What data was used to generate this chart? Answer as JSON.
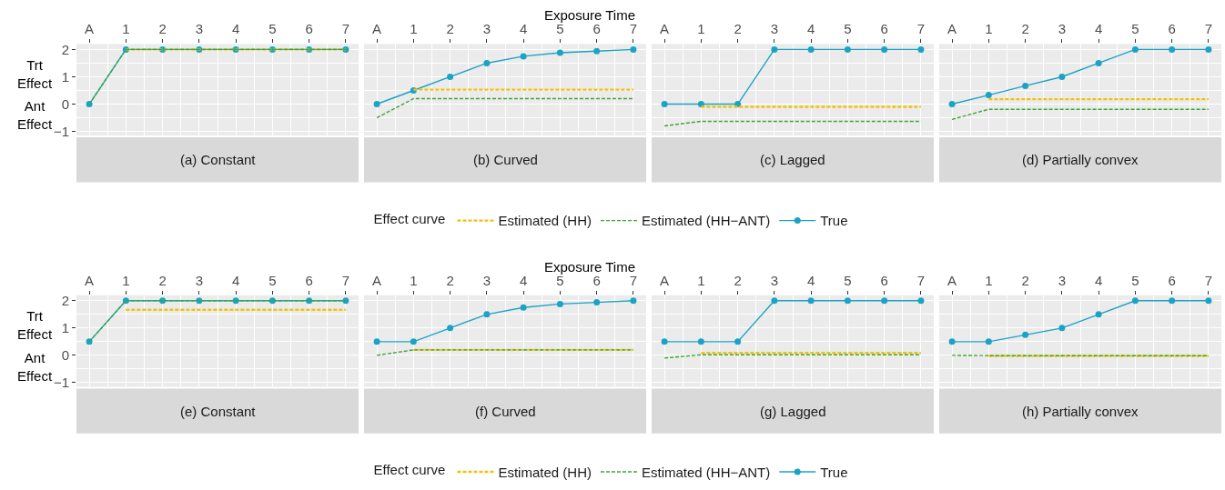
{
  "chart_data": [
    {
      "type": "line",
      "title": "(a) Constant",
      "categories": [
        "A",
        "1",
        "2",
        "3",
        "4",
        "5",
        "6",
        "7"
      ],
      "ylim": [
        -1.15,
        2.2
      ],
      "yticks": [
        -1,
        0,
        1,
        2
      ],
      "grid": true,
      "legend": "bottom",
      "legend_title": "Effect curve",
      "annotations": [
        "Trt Effect",
        "Ant Effect"
      ],
      "series": [
        {
          "name": "True",
          "color": "#1ba3c6",
          "marker": "circle",
          "line_style": "solid",
          "values": [
            0,
            2,
            2,
            2,
            2,
            2,
            2,
            2
          ]
        },
        {
          "name": "Estimated (HH)",
          "color": "#f2c10f",
          "marker": "none",
          "line_style": "dashed",
          "values": [
            null,
            2,
            2,
            2,
            2,
            2,
            2,
            2
          ]
        },
        {
          "name": "Estimated (HH−ANT)",
          "color": "#3fa535",
          "marker": "none",
          "line_style": "dashed",
          "values": [
            0,
            2,
            2,
            2,
            2,
            2,
            2,
            2
          ]
        }
      ]
    },
    {
      "type": "line",
      "title": "(b) Curved",
      "xlabel": "Exposure Time",
      "categories": [
        "A",
        "1",
        "2",
        "3",
        "4",
        "5",
        "6",
        "7"
      ],
      "ylim": [
        -1.15,
        2.2
      ],
      "yticks": [
        -1,
        0,
        1,
        2
      ],
      "grid": true,
      "tick_labels": "x",
      "legend": "bottom",
      "legend_title": "Effect curve",
      "series": [
        {
          "name": "True",
          "color": "#1ba3c6",
          "marker": "circle",
          "line_style": "solid",
          "values": [
            0,
            0.5,
            1,
            1.5,
            1.75,
            1.88,
            1.94,
            2
          ]
        },
        {
          "name": "Estimated (HH)",
          "color": "#f2c10f",
          "marker": "none",
          "line_style": "dashed",
          "values": [
            null,
            0.53,
            0.53,
            0.53,
            0.53,
            0.53,
            0.53,
            0.53
          ]
        },
        {
          "name": "Estimated (HH−ANT)",
          "color": "#3fa535",
          "marker": "none",
          "line_style": "dashed",
          "values": [
            -0.5,
            0.2,
            0.2,
            0.2,
            0.2,
            0.2,
            0.2,
            0.2
          ]
        }
      ]
    },
    {
      "type": "line",
      "title": "(c) Lagged",
      "categories": [
        "A",
        "1",
        "2",
        "3",
        "4",
        "5",
        "6",
        "7"
      ],
      "ylim": [
        -1.15,
        2.2
      ],
      "yticks": [
        -1,
        0,
        1,
        2
      ],
      "grid": true,
      "tick_labels": "x",
      "series": [
        {
          "color": "#1ba3c6",
          "marker": "circle",
          "line_style": "solid",
          "values": [
            0,
            0,
            0,
            2,
            2,
            2,
            2,
            2
          ]
        },
        {
          "color": "#f2c10f",
          "marker": "none",
          "line_style": "dashed",
          "values": [
            null,
            -0.1,
            -0.1,
            -0.1,
            -0.1,
            -0.1,
            -0.1,
            -0.1
          ]
        },
        {
          "color": "#3fa535",
          "marker": "none",
          "line_style": "dashed",
          "values": [
            -0.8,
            -0.63,
            -0.63,
            -0.63,
            -0.63,
            -0.63,
            -0.63,
            -0.63
          ]
        }
      ]
    },
    {
      "type": "line",
      "title": "(d) Partially convex",
      "categories": [
        "A",
        "1",
        "2",
        "3",
        "4",
        "5",
        "6",
        "7"
      ],
      "ylim": [
        -1.15,
        2.2
      ],
      "yticks": [
        -1,
        0,
        1,
        2
      ],
      "grid": true,
      "tick_labels": "x",
      "series": [
        {
          "color": "#1ba3c6",
          "marker": "circle",
          "line_style": "solid",
          "values": [
            0,
            0.33,
            0.67,
            1,
            1.5,
            2,
            2,
            2
          ]
        },
        {
          "color": "#f2c10f",
          "marker": "none",
          "line_style": "dashed",
          "values": [
            null,
            0.18,
            0.18,
            0.18,
            0.18,
            0.18,
            0.18,
            0.18
          ]
        },
        {
          "color": "#3fa535",
          "marker": "none",
          "line_style": "dashed",
          "values": [
            -0.56,
            -0.19,
            -0.19,
            -0.19,
            -0.19,
            -0.19,
            -0.19,
            -0.19
          ]
        }
      ]
    },
    {
      "type": "line",
      "title": "(e) Constant",
      "categories": [
        "A",
        "1",
        "2",
        "3",
        "4",
        "5",
        "6",
        "7"
      ],
      "ylim": [
        -1.15,
        2.2
      ],
      "yticks": [
        -1,
        0,
        1,
        2
      ],
      "grid": true,
      "annotations": [
        "Trt Effect",
        "Ant Effect"
      ],
      "series": [
        {
          "color": "#1ba3c6",
          "marker": "circle",
          "line_style": "solid",
          "values": [
            0.5,
            2,
            2,
            2,
            2,
            2,
            2,
            2
          ]
        },
        {
          "color": "#f2c10f",
          "marker": "none",
          "line_style": "dashed",
          "values": [
            null,
            1.67,
            1.67,
            1.67,
            1.67,
            1.67,
            1.67,
            1.67
          ]
        },
        {
          "color": "#3fa535",
          "marker": "none",
          "line_style": "dashed",
          "values": [
            0.5,
            2,
            2,
            2,
            2,
            2,
            2,
            2
          ]
        }
      ]
    },
    {
      "type": "line",
      "title": "(f) Curved",
      "xlabel": "Exposure Time",
      "categories": [
        "A",
        "1",
        "2",
        "3",
        "4",
        "5",
        "6",
        "7"
      ],
      "ylim": [
        -1.15,
        2.2
      ],
      "yticks": [
        -1,
        0,
        1,
        2
      ],
      "grid": true,
      "tick_labels": "x",
      "series": [
        {
          "color": "#1ba3c6",
          "marker": "circle",
          "line_style": "solid",
          "values": [
            0.5,
            0.5,
            1,
            1.5,
            1.75,
            1.88,
            1.94,
            2
          ]
        },
        {
          "color": "#f2c10f",
          "marker": "none",
          "line_style": "dashed",
          "values": [
            null,
            0.2,
            0.2,
            0.2,
            0.2,
            0.2,
            0.2,
            0.2
          ]
        },
        {
          "color": "#3fa535",
          "marker": "none",
          "line_style": "dashed",
          "values": [
            0,
            0.2,
            0.2,
            0.2,
            0.2,
            0.2,
            0.2,
            0.2
          ]
        }
      ]
    },
    {
      "type": "line",
      "title": "(g) Lagged",
      "categories": [
        "A",
        "1",
        "2",
        "3",
        "4",
        "5",
        "6",
        "7"
      ],
      "ylim": [
        -1.15,
        2.2
      ],
      "yticks": [
        -1,
        0,
        1,
        2
      ],
      "grid": true,
      "tick_labels": "x",
      "series": [
        {
          "color": "#1ba3c6",
          "marker": "circle",
          "line_style": "solid",
          "values": [
            0.5,
            0.5,
            0.5,
            2,
            2,
            2,
            2,
            2
          ]
        },
        {
          "color": "#f2c10f",
          "marker": "none",
          "line_style": "dashed",
          "values": [
            null,
            0.09,
            0.09,
            0.09,
            0.09,
            0.09,
            0.09,
            0.09
          ]
        },
        {
          "color": "#3fa535",
          "marker": "none",
          "line_style": "dashed",
          "values": [
            -0.1,
            0.02,
            0.02,
            0.02,
            0.02,
            0.02,
            0.02,
            0.02
          ]
        }
      ]
    },
    {
      "type": "line",
      "title": "(h) Partially convex",
      "categories": [
        "A",
        "1",
        "2",
        "3",
        "4",
        "5",
        "6",
        "7"
      ],
      "ylim": [
        -1.15,
        2.2
      ],
      "yticks": [
        -1,
        0,
        1,
        2
      ],
      "grid": true,
      "tick_labels": "x",
      "series": [
        {
          "color": "#1ba3c6",
          "marker": "circle",
          "line_style": "solid",
          "values": [
            0.5,
            0.5,
            0.75,
            1,
            1.5,
            2,
            2,
            2
          ]
        },
        {
          "color": "#f2c10f",
          "marker": "none",
          "line_style": "dashed",
          "values": [
            null,
            -0.02,
            -0.02,
            -0.02,
            -0.02,
            -0.02,
            -0.02,
            -0.02
          ]
        },
        {
          "color": "#3fa535",
          "marker": "none",
          "line_style": "dashed",
          "values": [
            0,
            -0.01,
            -0.01,
            -0.01,
            -0.01,
            -0.01,
            -0.01,
            -0.01
          ]
        }
      ]
    }
  ]
}
